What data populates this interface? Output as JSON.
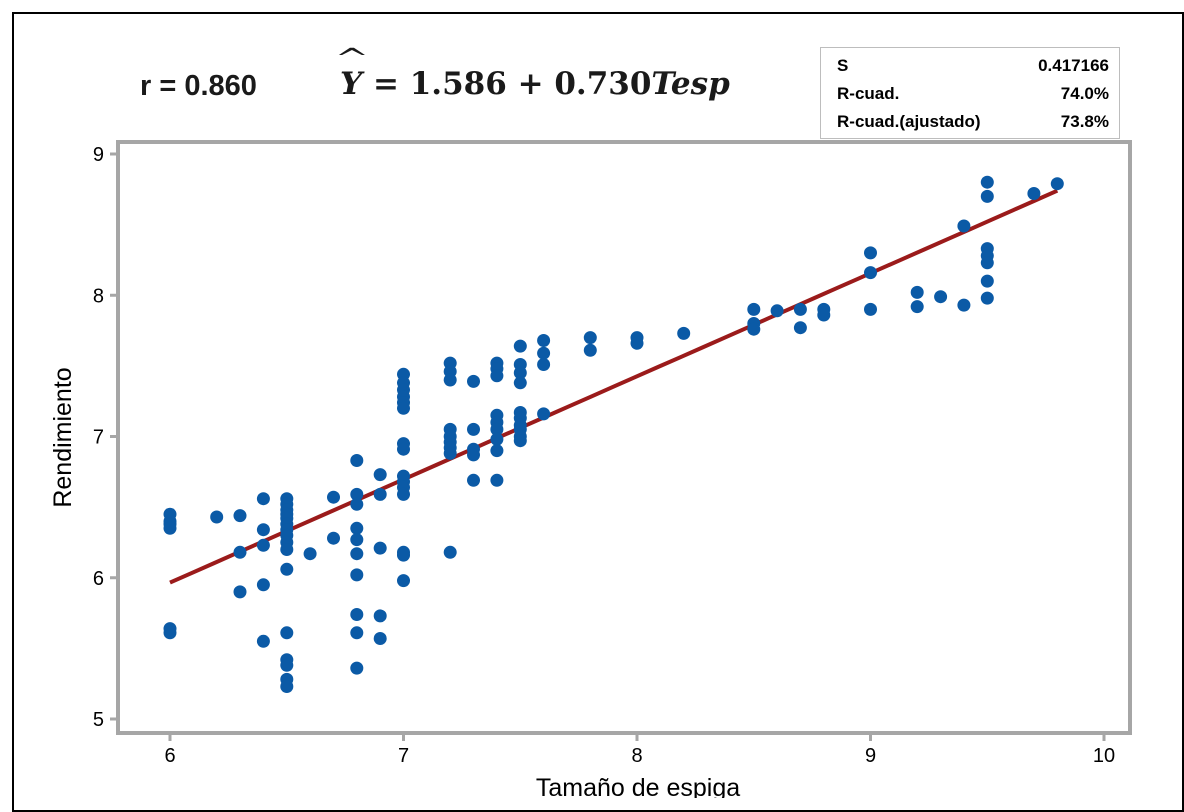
{
  "header": {
    "correlation": "r = 0.860",
    "equation": {
      "lhs": "Y",
      "rhs": "= 1.586 + 0.730",
      "variable": "Tesp"
    }
  },
  "stats_box": [
    {
      "label": "S",
      "value": "0.417166"
    },
    {
      "label": "R-cuad.",
      "value": "74.0%"
    },
    {
      "label": "R-cuad.(ajustado)",
      "value": "73.8%"
    }
  ],
  "colors": {
    "points": "#0b5aa6",
    "fit_line": "#9b1b1b",
    "plot_border": "#a6a6a6"
  },
  "chart_data": {
    "type": "scatter",
    "xlabel": "Tamaño de espiga",
    "ylabel": "Rendimiento",
    "xlim": [
      5.8,
      10.1
    ],
    "ylim": [
      4.9,
      9.1
    ],
    "xticks": [
      6,
      7,
      8,
      9,
      10
    ],
    "yticks": [
      5,
      6,
      7,
      8,
      9
    ],
    "fit": {
      "intercept": 1.586,
      "slope": 0.73,
      "x_range": [
        6.0,
        9.8
      ]
    },
    "points": [
      [
        6.0,
        6.45
      ],
      [
        6.0,
        6.4
      ],
      [
        6.0,
        6.38
      ],
      [
        6.0,
        6.35
      ],
      [
        6.0,
        5.64
      ],
      [
        6.0,
        5.61
      ],
      [
        6.2,
        6.43
      ],
      [
        6.3,
        6.44
      ],
      [
        6.3,
        6.18
      ],
      [
        6.3,
        5.9
      ],
      [
        6.4,
        6.56
      ],
      [
        6.4,
        6.34
      ],
      [
        6.4,
        6.23
      ],
      [
        6.4,
        5.95
      ],
      [
        6.4,
        5.55
      ],
      [
        6.5,
        6.56
      ],
      [
        6.5,
        6.52
      ],
      [
        6.5,
        6.48
      ],
      [
        6.5,
        6.45
      ],
      [
        6.5,
        6.42
      ],
      [
        6.5,
        6.38
      ],
      [
        6.5,
        6.34
      ],
      [
        6.5,
        6.3
      ],
      [
        6.5,
        6.25
      ],
      [
        6.5,
        6.2
      ],
      [
        6.5,
        6.06
      ],
      [
        6.5,
        5.61
      ],
      [
        6.5,
        5.42
      ],
      [
        6.5,
        5.38
      ],
      [
        6.5,
        5.28
      ],
      [
        6.5,
        5.23
      ],
      [
        6.6,
        6.17
      ],
      [
        6.7,
        6.57
      ],
      [
        6.7,
        6.28
      ],
      [
        6.8,
        6.83
      ],
      [
        6.8,
        6.59
      ],
      [
        6.8,
        6.52
      ],
      [
        6.8,
        6.35
      ],
      [
        6.8,
        6.27
      ],
      [
        6.8,
        6.17
      ],
      [
        6.8,
        6.02
      ],
      [
        6.8,
        5.74
      ],
      [
        6.8,
        5.61
      ],
      [
        6.8,
        5.36
      ],
      [
        6.9,
        6.73
      ],
      [
        6.9,
        6.59
      ],
      [
        6.9,
        6.21
      ],
      [
        6.9,
        5.73
      ],
      [
        6.9,
        5.57
      ],
      [
        7.0,
        7.44
      ],
      [
        7.0,
        7.38
      ],
      [
        7.0,
        7.33
      ],
      [
        7.0,
        7.28
      ],
      [
        7.0,
        7.24
      ],
      [
        7.0,
        7.2
      ],
      [
        7.0,
        6.95
      ],
      [
        7.0,
        6.91
      ],
      [
        7.0,
        6.72
      ],
      [
        7.0,
        6.68
      ],
      [
        7.0,
        6.64
      ],
      [
        7.0,
        6.59
      ],
      [
        7.0,
        6.18
      ],
      [
        7.0,
        6.16
      ],
      [
        7.0,
        5.98
      ],
      [
        7.2,
        7.52
      ],
      [
        7.2,
        7.46
      ],
      [
        7.2,
        7.4
      ],
      [
        7.2,
        7.05
      ],
      [
        7.2,
        7.0
      ],
      [
        7.2,
        6.96
      ],
      [
        7.2,
        6.92
      ],
      [
        7.2,
        6.88
      ],
      [
        7.2,
        6.18
      ],
      [
        7.3,
        7.39
      ],
      [
        7.3,
        7.05
      ],
      [
        7.3,
        6.91
      ],
      [
        7.3,
        6.87
      ],
      [
        7.3,
        6.69
      ],
      [
        7.4,
        7.52
      ],
      [
        7.4,
        7.48
      ],
      [
        7.4,
        7.43
      ],
      [
        7.4,
        7.15
      ],
      [
        7.4,
        7.1
      ],
      [
        7.4,
        7.05
      ],
      [
        7.4,
        6.98
      ],
      [
        7.4,
        6.9
      ],
      [
        7.4,
        6.69
      ],
      [
        7.5,
        7.64
      ],
      [
        7.5,
        7.51
      ],
      [
        7.5,
        7.45
      ],
      [
        7.5,
        7.38
      ],
      [
        7.5,
        7.17
      ],
      [
        7.5,
        7.13
      ],
      [
        7.5,
        7.08
      ],
      [
        7.5,
        7.05
      ],
      [
        7.5,
        7.0
      ],
      [
        7.5,
        6.97
      ],
      [
        7.6,
        7.68
      ],
      [
        7.6,
        7.59
      ],
      [
        7.6,
        7.51
      ],
      [
        7.6,
        7.16
      ],
      [
        7.8,
        7.7
      ],
      [
        7.8,
        7.61
      ],
      [
        8.0,
        7.7
      ],
      [
        8.0,
        7.66
      ],
      [
        8.2,
        7.73
      ],
      [
        8.5,
        7.9
      ],
      [
        8.5,
        7.8
      ],
      [
        8.5,
        7.76
      ],
      [
        8.6,
        7.89
      ],
      [
        8.7,
        7.9
      ],
      [
        8.7,
        7.77
      ],
      [
        8.8,
        7.9
      ],
      [
        8.8,
        7.86
      ],
      [
        9.0,
        8.3
      ],
      [
        9.0,
        8.16
      ],
      [
        9.0,
        7.9
      ],
      [
        9.2,
        8.02
      ],
      [
        9.2,
        7.92
      ],
      [
        9.3,
        7.99
      ],
      [
        9.4,
        8.49
      ],
      [
        9.4,
        7.93
      ],
      [
        9.5,
        8.8
      ],
      [
        9.5,
        8.7
      ],
      [
        9.5,
        8.33
      ],
      [
        9.5,
        8.28
      ],
      [
        9.5,
        8.23
      ],
      [
        9.5,
        8.1
      ],
      [
        9.5,
        7.98
      ],
      [
        9.7,
        8.72
      ],
      [
        9.8,
        8.79
      ]
    ]
  }
}
